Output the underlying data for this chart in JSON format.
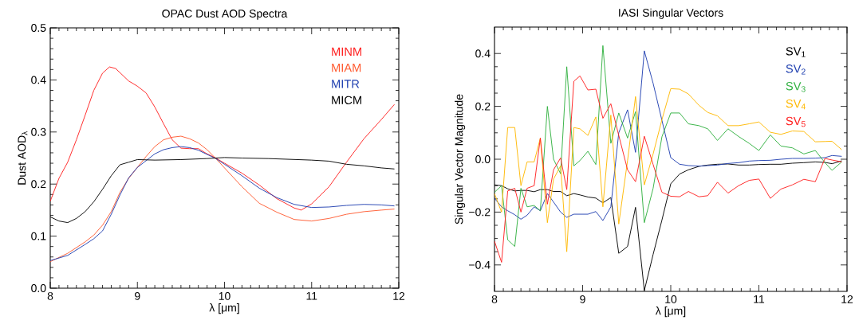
{
  "chart_data": [
    {
      "type": "line",
      "title": "OPAC Dust AOD Spectra",
      "xlabel": "λ [μm]",
      "ylabel": "Dust AOD$_{λ}$",
      "xlim": [
        8,
        12
      ],
      "ylim": [
        0,
        0.5
      ],
      "xticks": [
        8,
        9,
        10,
        11,
        12
      ],
      "yticks": [
        {
          "value": 0,
          "label": "0.0"
        },
        {
          "value": 0.1,
          "label": "0.1"
        },
        {
          "value": 0.2,
          "label": "0.2"
        },
        {
          "value": 0.3,
          "label": "0.3"
        },
        {
          "value": 0.4,
          "label": "0.4"
        },
        {
          "value": 0.5,
          "label": "0.5"
        }
      ],
      "legend": "top right",
      "series": [
        {
          "name": "MINM",
          "color": "#ff2020",
          "x": [
            8.0,
            8.1,
            8.2,
            8.3,
            8.4,
            8.5,
            8.6,
            8.68,
            8.75,
            8.9,
            9.0,
            9.1,
            9.2,
            9.3,
            9.4,
            9.5,
            9.6,
            9.7,
            9.8,
            9.9,
            10.0,
            10.2,
            10.4,
            10.6,
            10.8,
            10.88,
            11.0,
            11.2,
            11.4,
            11.6,
            11.8,
            11.95
          ],
          "values": [
            0.167,
            0.211,
            0.242,
            0.285,
            0.332,
            0.38,
            0.413,
            0.425,
            0.422,
            0.398,
            0.388,
            0.375,
            0.348,
            0.316,
            0.285,
            0.269,
            0.268,
            0.268,
            0.258,
            0.25,
            0.24,
            0.221,
            0.198,
            0.172,
            0.154,
            0.15,
            0.162,
            0.195,
            0.242,
            0.287,
            0.324,
            0.353
          ]
        },
        {
          "name": "MIAM",
          "color": "#ff5a30",
          "x": [
            8.0,
            8.2,
            8.4,
            8.5,
            8.6,
            8.7,
            8.8,
            8.9,
            9.0,
            9.1,
            9.2,
            9.3,
            9.4,
            9.5,
            9.6,
            9.7,
            9.8,
            9.9,
            10.0,
            10.2,
            10.4,
            10.6,
            10.8,
            11.0,
            11.2,
            11.4,
            11.6,
            11.8,
            11.95
          ],
          "values": [
            0.051,
            0.067,
            0.089,
            0.102,
            0.121,
            0.147,
            0.184,
            0.211,
            0.232,
            0.253,
            0.272,
            0.285,
            0.29,
            0.292,
            0.287,
            0.279,
            0.266,
            0.249,
            0.231,
            0.195,
            0.163,
            0.146,
            0.132,
            0.129,
            0.134,
            0.142,
            0.147,
            0.15,
            0.152
          ]
        },
        {
          "name": "MITR",
          "color": "#2040b0",
          "x": [
            8.0,
            8.2,
            8.4,
            8.5,
            8.6,
            8.7,
            8.8,
            8.9,
            9.0,
            9.1,
            9.2,
            9.3,
            9.4,
            9.5,
            9.6,
            9.7,
            9.8,
            9.9,
            10.0,
            10.2,
            10.4,
            10.6,
            10.8,
            11.0,
            11.2,
            11.4,
            11.6,
            11.8,
            11.95
          ],
          "values": [
            0.053,
            0.063,
            0.084,
            0.095,
            0.11,
            0.142,
            0.179,
            0.212,
            0.232,
            0.245,
            0.258,
            0.266,
            0.27,
            0.272,
            0.27,
            0.265,
            0.257,
            0.249,
            0.238,
            0.216,
            0.192,
            0.174,
            0.161,
            0.155,
            0.156,
            0.159,
            0.161,
            0.16,
            0.158
          ]
        },
        {
          "name": "MICM",
          "color": "#000000",
          "x": [
            8.0,
            8.1,
            8.2,
            8.3,
            8.4,
            8.5,
            8.6,
            8.7,
            8.8,
            8.9,
            9.0,
            9.2,
            9.5,
            9.8,
            10.0,
            10.2,
            10.5,
            11.0,
            11.2,
            11.4,
            11.6,
            11.8,
            11.95
          ],
          "values": [
            0.137,
            0.129,
            0.126,
            0.134,
            0.147,
            0.166,
            0.19,
            0.216,
            0.237,
            0.242,
            0.247,
            0.246,
            0.247,
            0.249,
            0.251,
            0.25,
            0.249,
            0.246,
            0.244,
            0.238,
            0.235,
            0.231,
            0.229
          ]
        }
      ]
    },
    {
      "type": "line",
      "title": "IASI Singular Vectors",
      "xlabel": "λ [μm]",
      "ylabel": "Singular Vector Magnitude",
      "xlim": [
        8,
        12
      ],
      "ylim": [
        -0.5,
        0.5
      ],
      "xticks": [
        8,
        9,
        10,
        11,
        12
      ],
      "yticks": [
        {
          "value": -0.4,
          "label": "−0.4"
        },
        {
          "value": -0.2,
          "label": "−0.2"
        },
        {
          "value": 0,
          "label": "0.0"
        },
        {
          "value": 0.2,
          "label": "0.2"
        },
        {
          "value": 0.4,
          "label": "0.4"
        }
      ],
      "legend": "top right",
      "x": [
        8.0,
        8.08,
        8.15,
        8.23,
        8.3,
        8.37,
        8.45,
        8.52,
        8.6,
        8.67,
        8.75,
        8.82,
        8.9,
        8.97,
        9.06,
        9.15,
        9.23,
        9.32,
        9.41,
        9.51,
        9.6,
        9.7,
        9.8,
        9.9,
        10.0,
        10.1,
        10.2,
        10.32,
        10.42,
        10.53,
        10.65,
        10.77,
        10.89,
        11.0,
        11.13,
        11.25,
        11.38,
        11.51,
        11.64,
        11.75,
        11.83,
        11.94
      ],
      "series": [
        {
          "name": "SV$_{1}$",
          "color": "#000000",
          "values": [
            -0.097,
            -0.1,
            -0.112,
            -0.12,
            -0.118,
            -0.118,
            -0.123,
            -0.115,
            -0.115,
            -0.122,
            -0.122,
            -0.138,
            -0.13,
            -0.135,
            -0.143,
            -0.147,
            -0.165,
            -0.145,
            -0.356,
            -0.33,
            -0.182,
            -0.497,
            -0.36,
            -0.23,
            -0.093,
            -0.056,
            -0.04,
            -0.027,
            -0.022,
            -0.019,
            -0.018,
            -0.022,
            -0.022,
            -0.02,
            -0.019,
            -0.019,
            -0.015,
            -0.013,
            -0.01,
            -0.012,
            -0.017,
            -0.006
          ]
        },
        {
          "name": "SV$_{2}$",
          "color": "#2040b0",
          "values": [
            -0.148,
            -0.18,
            -0.195,
            -0.21,
            -0.227,
            -0.212,
            -0.18,
            -0.195,
            -0.13,
            -0.162,
            -0.2,
            -0.22,
            -0.208,
            -0.208,
            -0.208,
            -0.198,
            -0.232,
            -0.18,
            0.1,
            0.187,
            0.026,
            0.41,
            0.287,
            0.147,
            0.006,
            -0.019,
            -0.024,
            -0.026,
            -0.024,
            -0.022,
            -0.016,
            -0.013,
            -0.007,
            -0.005,
            -0.004,
            0.0,
            0.003,
            0.003,
            0.004,
            0.006,
            0.014,
            0.011
          ]
        },
        {
          "name": "SV$_{3}$",
          "color": "#30b040",
          "values": [
            -0.125,
            -0.1,
            -0.305,
            -0.33,
            -0.11,
            -0.18,
            -0.175,
            -0.195,
            0.2,
            0.0,
            -0.055,
            0.35,
            -0.025,
            -0.005,
            0.03,
            -0.02,
            0.43,
            0.06,
            0.175,
            0.08,
            0.18,
            -0.24,
            -0.11,
            0.085,
            0.175,
            0.175,
            0.134,
            0.127,
            0.115,
            0.071,
            0.115,
            0.086,
            0.06,
            0.033,
            0.092,
            0.05,
            0.043,
            0.02,
            0.033,
            -0.013,
            -0.042,
            -0.01
          ]
        },
        {
          "name": "SV$_{4}$",
          "color": "#ffb800",
          "values": [
            -0.13,
            -0.2,
            0.12,
            0.12,
            -0.1,
            -0.01,
            -0.01,
            0.08,
            -0.24,
            -0.075,
            -0.025,
            -0.35,
            0.12,
            0.115,
            0.09,
            0.16,
            -0.18,
            0.167,
            -0.245,
            -0.005,
            0.237,
            -0.097,
            0.02,
            0.15,
            0.267,
            0.265,
            0.247,
            0.204,
            0.177,
            0.164,
            0.127,
            0.127,
            0.134,
            0.141,
            0.102,
            0.094,
            0.107,
            0.105,
            0.066,
            0.067,
            0.068,
            0.036
          ]
        },
        {
          "name": "SV$_{5}$",
          "color": "#ff2020",
          "values": [
            -0.31,
            -0.39,
            -0.12,
            -0.11,
            -0.2,
            -0.11,
            -0.1,
            0.08,
            -0.17,
            -0.04,
            0.005,
            -0.115,
            0.295,
            0.315,
            0.262,
            0.265,
            0.155,
            0.21,
            0.09,
            -0.04,
            -0.085,
            0.087,
            -0.02,
            -0.125,
            -0.14,
            -0.142,
            -0.122,
            -0.142,
            -0.138,
            -0.087,
            -0.128,
            -0.1,
            -0.08,
            -0.075,
            -0.148,
            -0.113,
            -0.097,
            -0.076,
            -0.085,
            0.003,
            -0.003,
            -0.01
          ]
        }
      ]
    }
  ]
}
